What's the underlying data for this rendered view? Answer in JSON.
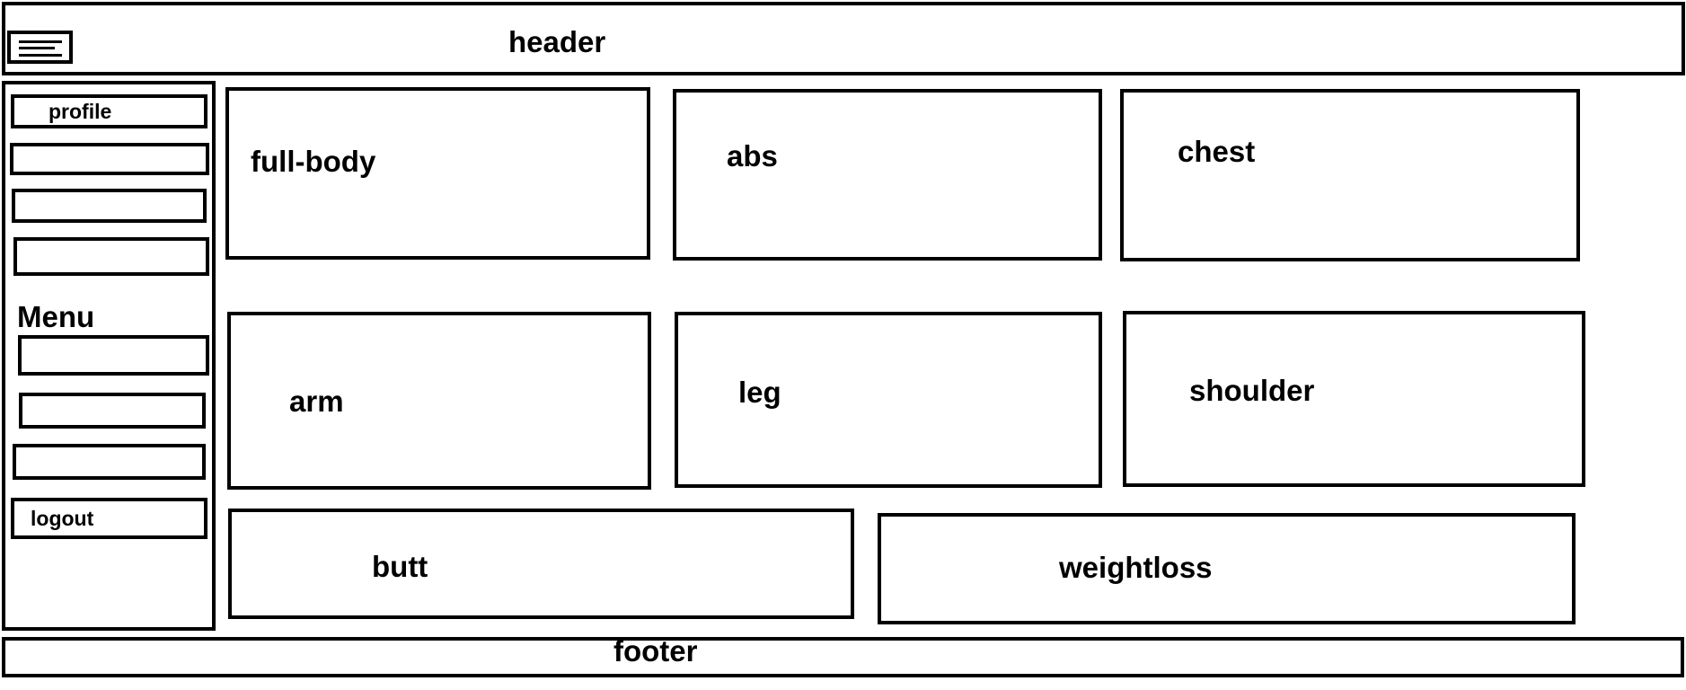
{
  "header": {
    "title": "header",
    "menu_icon": "hamburger-menu-icon"
  },
  "sidebar": {
    "heading": "Menu",
    "items": [
      {
        "label": "profile"
      },
      {
        "label": ""
      },
      {
        "label": ""
      },
      {
        "label": ""
      },
      {
        "label": ""
      },
      {
        "label": ""
      },
      {
        "label": ""
      },
      {
        "label": "logout"
      }
    ]
  },
  "cards": [
    {
      "label": "full-body"
    },
    {
      "label": "abs"
    },
    {
      "label": "chest"
    },
    {
      "label": "arm"
    },
    {
      "label": "leg"
    },
    {
      "label": "shoulder"
    },
    {
      "label": "butt"
    },
    {
      "label": "weightloss"
    }
  ],
  "footer": {
    "title": "footer"
  }
}
